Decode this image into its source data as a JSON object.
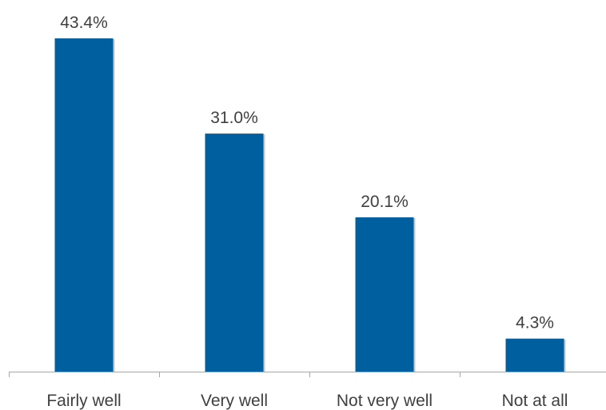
{
  "chart_data": {
    "type": "bar",
    "categories": [
      "Fairly well",
      "Very well",
      "Not very well",
      "Not at all"
    ],
    "values": [
      43.4,
      31.0,
      20.1,
      4.3
    ],
    "data_labels": [
      "43.4%",
      "31.0%",
      "20.1%",
      "4.3%"
    ],
    "title": "",
    "xlabel": "",
    "ylabel": "",
    "ylim": [
      0,
      43.4
    ],
    "grid": false,
    "legend": "none",
    "colors": {
      "bar": "#00609f",
      "bar_shadow": "#c8c8c8",
      "axis": "#a6a6a6",
      "text": "#404040"
    }
  }
}
